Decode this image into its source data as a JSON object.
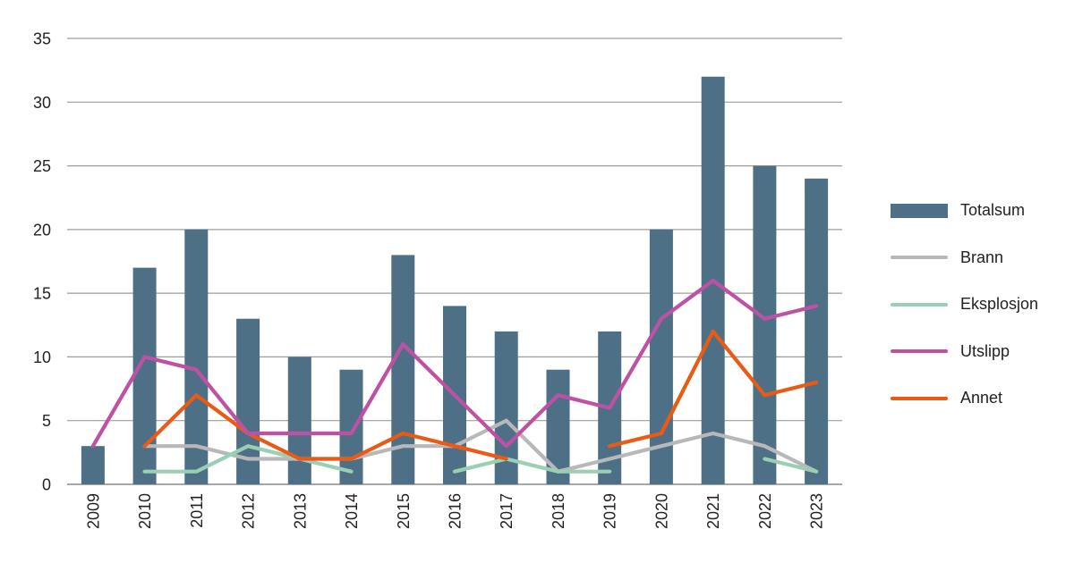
{
  "chart_data": {
    "type": "bar+line combo",
    "title": "",
    "categories": [
      "2009",
      "2010",
      "2011",
      "2012",
      "2013",
      "2014",
      "2015",
      "2016",
      "2017",
      "2018",
      "2019",
      "2020",
      "2021",
      "2022",
      "2023"
    ],
    "series": [
      {
        "name": "Totalsum",
        "kind": "bar",
        "color": "#4E7087",
        "values": [
          3,
          17,
          20,
          13,
          10,
          9,
          18,
          14,
          12,
          9,
          12,
          20,
          32,
          25,
          24
        ]
      },
      {
        "name": "Brann",
        "kind": "line",
        "color": "#B8B8BB",
        "values": [
          null,
          3,
          3,
          2,
          2,
          2,
          3,
          3,
          5,
          1,
          2,
          3,
          4,
          3,
          1
        ]
      },
      {
        "name": "Eksplosjon",
        "kind": "line",
        "color": "#9BCFB4",
        "values": [
          null,
          1,
          1,
          3,
          2,
          1,
          null,
          1,
          2,
          1,
          1,
          null,
          null,
          2,
          1
        ]
      },
      {
        "name": "Utslipp",
        "kind": "line",
        "color": "#BF51A4",
        "values": [
          3,
          10,
          9,
          4,
          4,
          4,
          11,
          7,
          3,
          7,
          6,
          13,
          16,
          13,
          14
        ]
      },
      {
        "name": "Annet",
        "kind": "line",
        "color": "#EB5A14",
        "values": [
          null,
          3,
          7,
          4,
          2,
          2,
          4,
          3,
          2,
          null,
          3,
          4,
          12,
          7,
          8
        ]
      }
    ],
    "draw_order": [
      "Totalsum",
      "Brann",
      "Eksplosjon",
      "Annet",
      "Utslipp"
    ],
    "ylim": [
      0,
      35
    ],
    "yticks": [
      0,
      5,
      10,
      15,
      20,
      25,
      30,
      35
    ],
    "xlabel": "",
    "ylabel": "",
    "grid": true,
    "legend_position": "right",
    "grid_color": "#9E9E9E",
    "axis_color": "#8A8A8A",
    "text_color": "#232323"
  }
}
